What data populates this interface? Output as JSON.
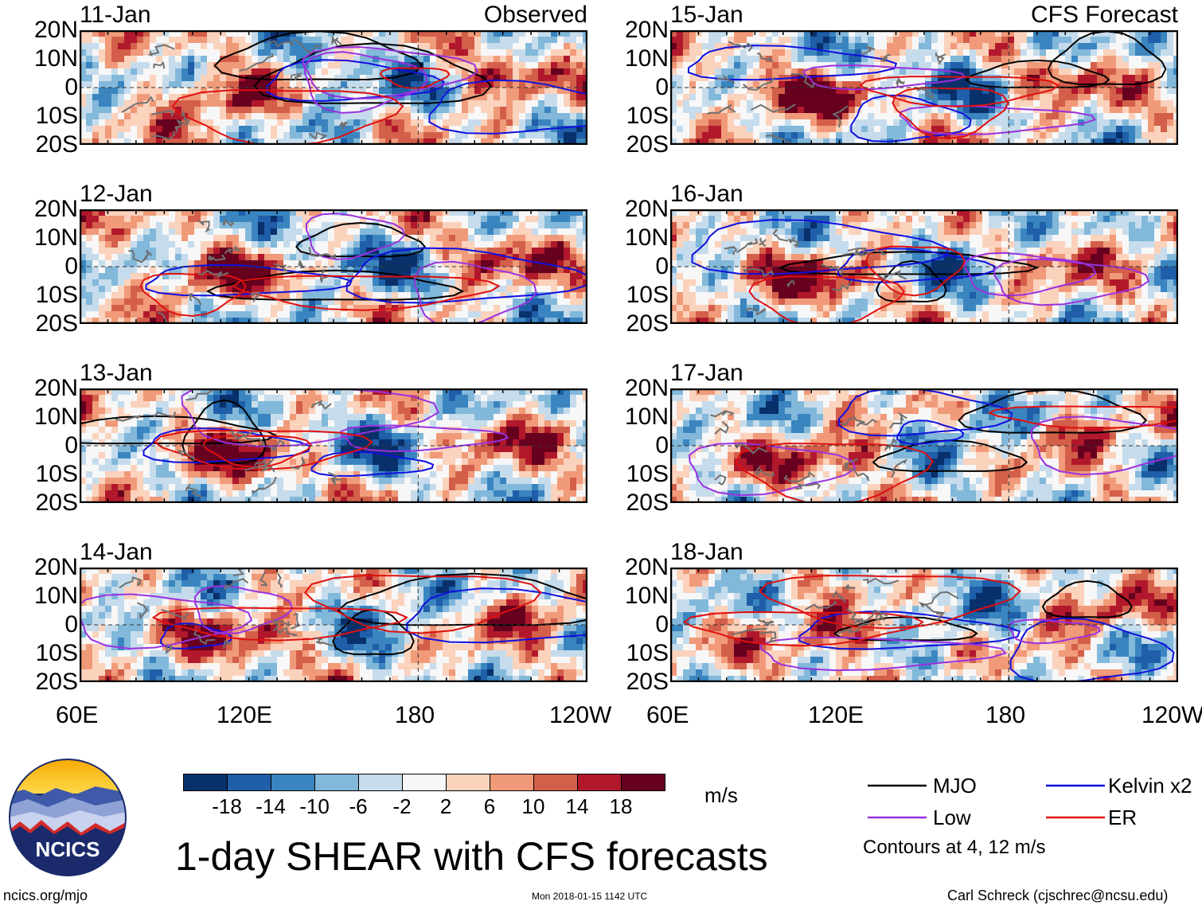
{
  "chart_data": {
    "type": "heatmap",
    "title": "1-day SHEAR with CFS forecasts",
    "units": "m/s",
    "columns": [
      {
        "label": "Observed",
        "panels": [
          "11-Jan",
          "12-Jan",
          "13-Jan",
          "14-Jan"
        ]
      },
      {
        "label": "CFS Forecast",
        "panels": [
          "15-Jan",
          "16-Jan",
          "17-Jan",
          "18-Jan"
        ]
      }
    ],
    "lat_ticks": [
      "20N",
      "10N",
      "0",
      "10S",
      "20S"
    ],
    "lat_range": [
      -20,
      20
    ],
    "lon_ticks": [
      "60E",
      "120E",
      "180",
      "120W"
    ],
    "lon_range": [
      60,
      240
    ],
    "colorbar_ticks": [
      "-18",
      "-14",
      "-10",
      "-6",
      "-2",
      "2",
      "6",
      "10",
      "14",
      "18"
    ],
    "colorbar_colors": [
      "#08306b",
      "#1f5ea8",
      "#3a85c0",
      "#82b8da",
      "#c6dcec",
      "#f7f7f7",
      "#fbd2bc",
      "#f09a79",
      "#d35f4a",
      "#b1182b",
      "#67001f"
    ],
    "legend": [
      {
        "label": "MJO",
        "color": "#000000"
      },
      {
        "label": "Kelvin x2",
        "color": "#1010e0"
      },
      {
        "label": "Low",
        "color": "#9b30e0"
      },
      {
        "label": "ER",
        "color": "#e01010"
      }
    ],
    "contours_note": "Contours at 4, 12 m/s"
  },
  "logo": {
    "text": "NCICS"
  },
  "footer": {
    "left": "ncics.org/mjo",
    "center": "Mon 2018-01-15 1142 UTC",
    "right": "Carl Schreck (cjschrec@ncsu.edu)"
  }
}
